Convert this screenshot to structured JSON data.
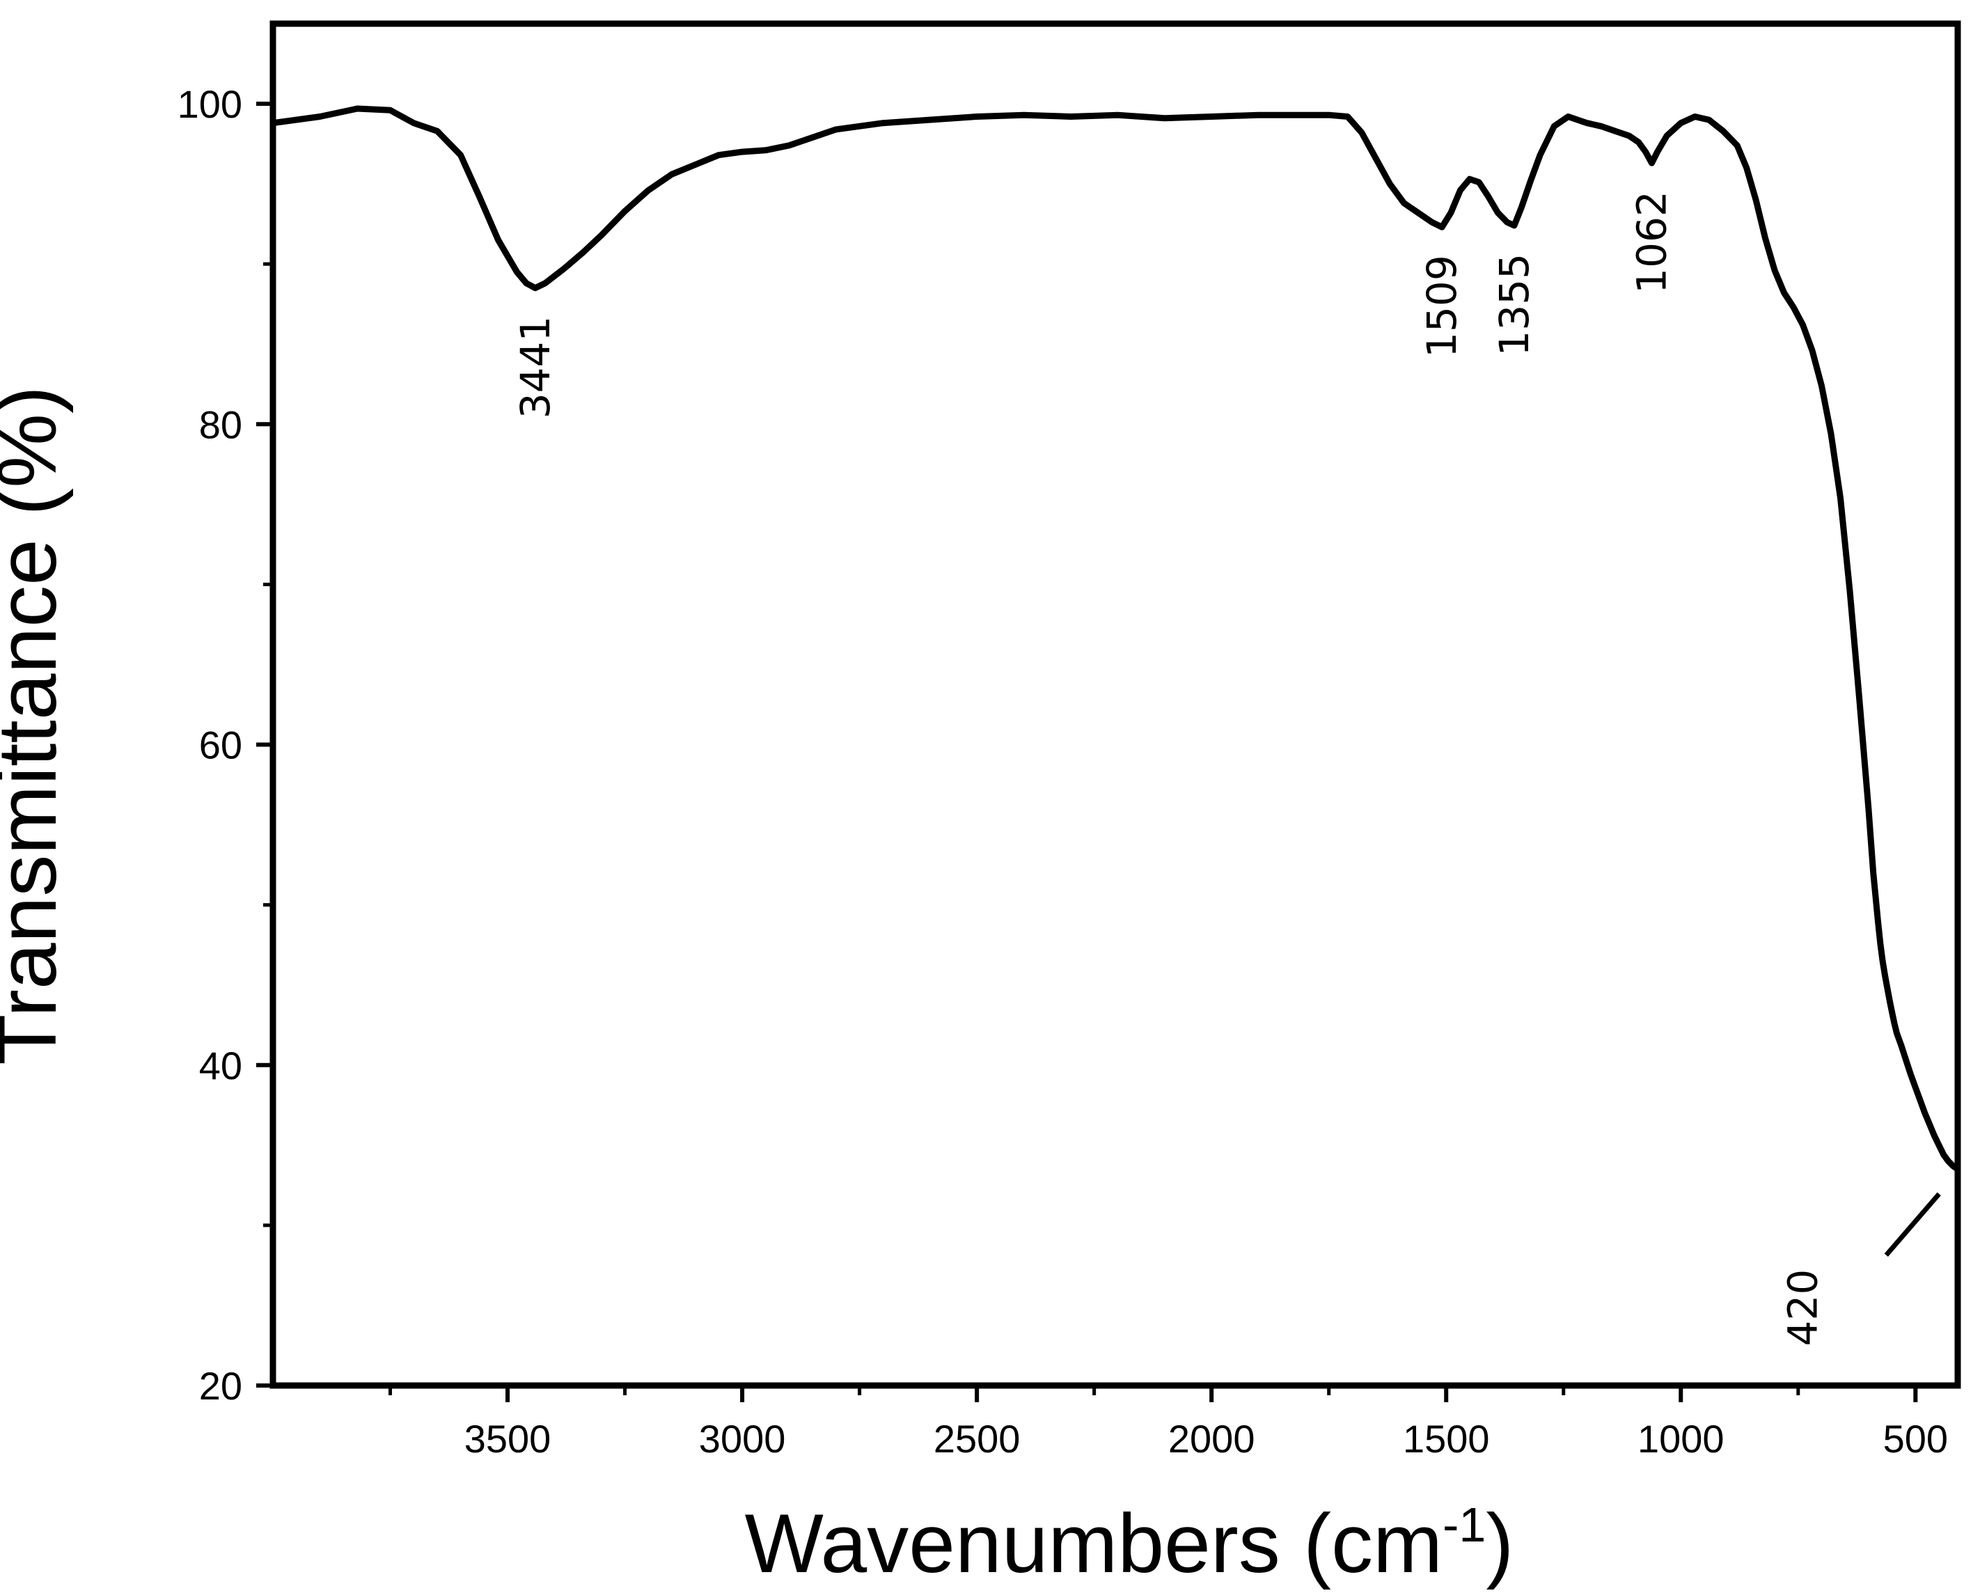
{
  "chart_data": {
    "type": "line",
    "title": "",
    "xlabel": "Wavenumbers (cm",
    "xlabel_superscript": "-1",
    "xlabel_close": ")",
    "ylabel": "Transmittance (%)",
    "xlim": [
      4000,
      410
    ],
    "ylim": [
      20,
      105
    ],
    "x_reversed": true,
    "grid": false,
    "legend": "none",
    "line_color": "#000000",
    "x_ticks": [
      3500,
      3000,
      2500,
      2000,
      1500,
      1000,
      500
    ],
    "x_tick_labels": [
      "3500",
      "3000",
      "2500",
      "2000",
      "1500",
      "1000",
      "500"
    ],
    "x_minor_ticks": [
      3750,
      3250,
      2750,
      2250,
      1750,
      1250,
      750
    ],
    "y_ticks": [
      20,
      40,
      60,
      80,
      100
    ],
    "y_tick_labels": [
      "20",
      "40",
      "60",
      "80",
      "100"
    ],
    "y_minor_ticks": [
      30,
      50,
      70,
      90
    ],
    "series": [
      {
        "x": [
          4000,
          3900,
          3820,
          3750,
          3700,
          3650,
          3600,
          3560,
          3520,
          3480,
          3460,
          3441,
          3420,
          3380,
          3340,
          3300,
          3250,
          3200,
          3150,
          3100,
          3050,
          3000,
          2950,
          2900,
          2850,
          2800,
          2750,
          2700,
          2600,
          2500,
          2400,
          2300,
          2200,
          2100,
          2000,
          1900,
          1800,
          1750,
          1710,
          1680,
          1650,
          1620,
          1590,
          1560,
          1530,
          1509,
          1490,
          1470,
          1450,
          1430,
          1410,
          1390,
          1370,
          1355,
          1340,
          1320,
          1300,
          1270,
          1240,
          1220,
          1200,
          1170,
          1140,
          1110,
          1090,
          1075,
          1062,
          1050,
          1030,
          1000,
          970,
          940,
          910,
          880,
          860,
          840,
          820,
          800,
          780,
          760,
          740,
          720,
          700,
          680,
          660,
          640,
          620,
          600,
          590,
          580,
          575,
          570,
          565,
          560,
          555,
          550,
          545,
          540,
          530,
          520,
          510,
          500,
          490,
          480,
          470,
          460,
          450,
          440,
          430,
          420,
          410
        ],
        "y": [
          98.8,
          99.2,
          99.7,
          99.6,
          98.8,
          98.3,
          96.8,
          94.2,
          91.5,
          89.5,
          88.8,
          88.5,
          88.8,
          89.7,
          90.7,
          91.8,
          93.3,
          94.6,
          95.6,
          96.2,
          96.8,
          97.0,
          97.1,
          97.4,
          97.9,
          98.4,
          98.6,
          98.8,
          99.0,
          99.2,
          99.3,
          99.2,
          99.3,
          99.1,
          99.2,
          99.3,
          99.3,
          99.3,
          99.2,
          98.2,
          96.6,
          95.0,
          93.8,
          93.2,
          92.6,
          92.3,
          93.2,
          94.6,
          95.3,
          95.1,
          94.2,
          93.2,
          92.6,
          92.4,
          93.5,
          95.2,
          96.8,
          98.6,
          99.2,
          99.0,
          98.8,
          98.6,
          98.3,
          98.0,
          97.6,
          97.0,
          96.3,
          97.0,
          98.0,
          98.8,
          99.2,
          99.0,
          98.3,
          97.4,
          96.0,
          94.0,
          91.6,
          89.6,
          88.2,
          87.3,
          86.2,
          84.6,
          82.4,
          79.4,
          75.4,
          69.6,
          63.0,
          56.0,
          52.0,
          49.0,
          47.6,
          46.5,
          45.6,
          44.8,
          44.0,
          43.3,
          42.6,
          42.0,
          41.2,
          40.3,
          39.4,
          38.6,
          37.8,
          37.0,
          36.3,
          35.6,
          35.0,
          34.4,
          34.0,
          33.7,
          33.5
        ]
      }
    ],
    "annotations": [
      {
        "text": "3441",
        "x": 3441,
        "y": 88.5
      },
      {
        "text": "1509",
        "x": 1509,
        "y": 92.3
      },
      {
        "text": "1355",
        "x": 1355,
        "y": 92.4
      },
      {
        "text": "1062",
        "x": 1062,
        "y": 96.3
      },
      {
        "text": "420",
        "x": 420,
        "y": 33.7
      }
    ]
  }
}
